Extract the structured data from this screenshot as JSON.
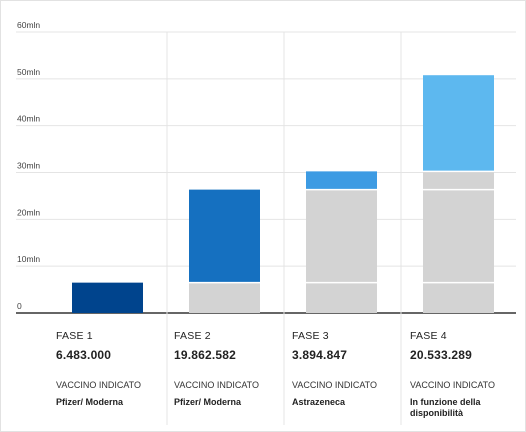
{
  "chart_data": {
    "type": "bar",
    "stacked": true,
    "y_ticks": [
      "60mln",
      "50mln",
      "40mln",
      "30mln",
      "20mln",
      "10mln",
      "0"
    ],
    "ylim": [
      0,
      60000000
    ],
    "grid": true,
    "categories": [
      "FASE 1",
      "FASE 2",
      "FASE 3",
      "FASE 4"
    ],
    "category_values": [
      "6.483.000",
      "19.862.582",
      "3.894.847",
      "20.533.289"
    ],
    "vaccine_label": "VACCINO INDICATO",
    "vaccines": [
      "Pfizer/ Moderna",
      "Pfizer/ Moderna",
      "Astrazeneca",
      "In funzione della disponibilità"
    ],
    "bars": [
      {
        "segments": [
          {
            "value": 6483000,
            "color": "#00448d"
          }
        ]
      },
      {
        "segments": [
          {
            "value": 6483000,
            "color": "#d3d3d3"
          },
          {
            "value": 19862582,
            "color": "#1570c0"
          }
        ]
      },
      {
        "segments": [
          {
            "value": 6483000,
            "color": "#d3d3d3"
          },
          {
            "value": 19862582,
            "color": "#d3d3d3"
          },
          {
            "value": 3894847,
            "color": "#3d9be3"
          }
        ]
      },
      {
        "segments": [
          {
            "value": 6483000,
            "color": "#d3d3d3"
          },
          {
            "value": 19862582,
            "color": "#d3d3d3"
          },
          {
            "value": 3894847,
            "color": "#d3d3d3"
          },
          {
            "value": 20533289,
            "color": "#5db8ef"
          }
        ]
      }
    ]
  }
}
